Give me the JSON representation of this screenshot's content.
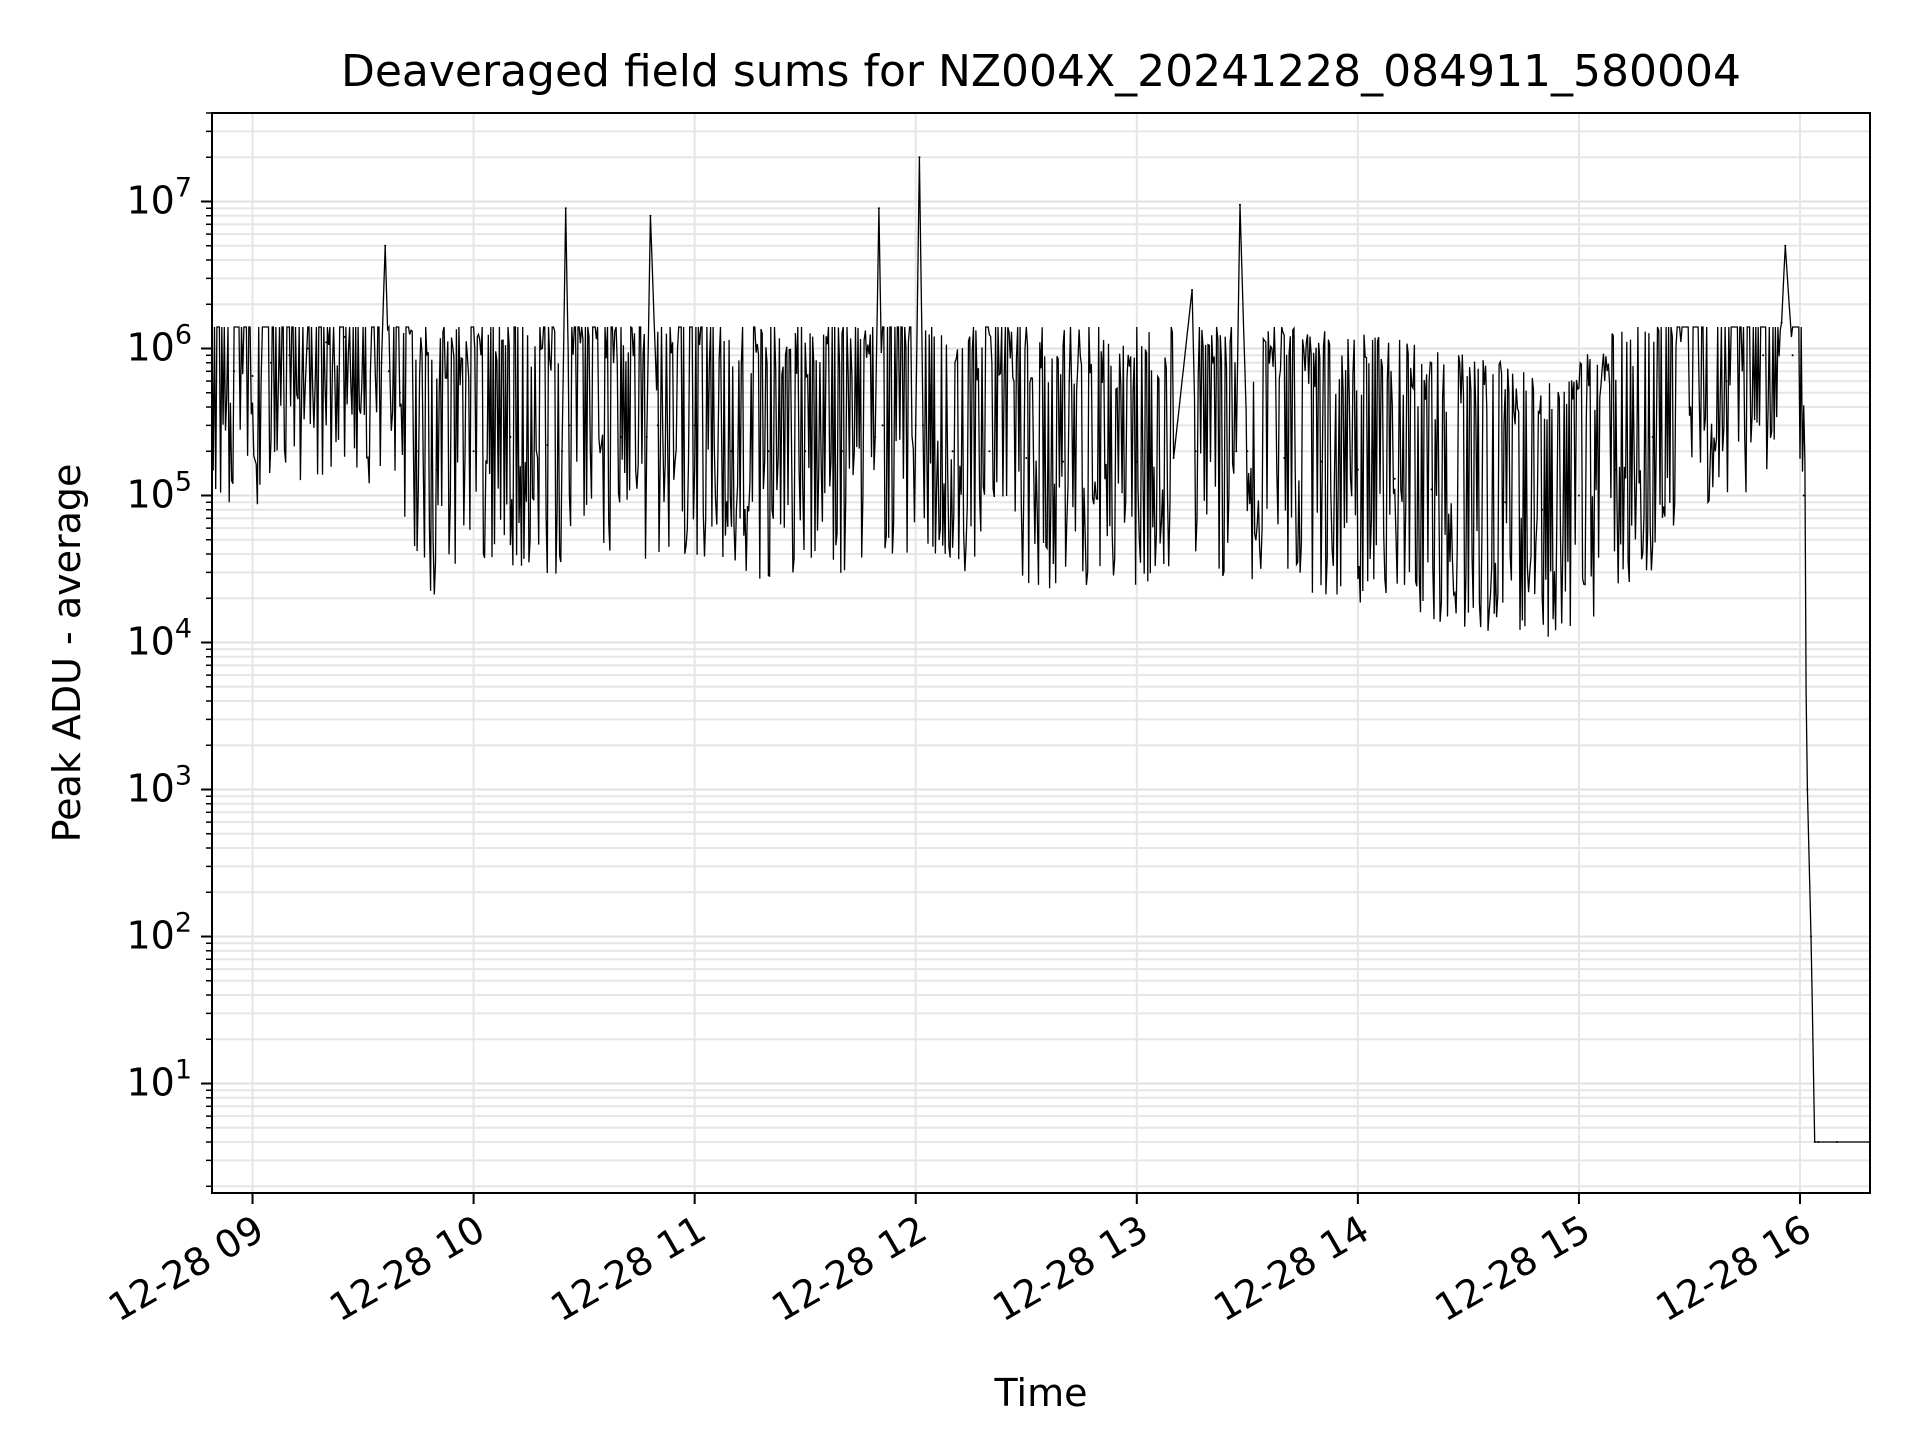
{
  "chart_data": {
    "type": "line",
    "title": "Deaveraged field sums for NZ004X_20241228_084911_580004",
    "xlabel": "Time",
    "ylabel": "Peak ADU - average",
    "yscale": "log",
    "ylim": [
      1.8,
      40000000
    ],
    "xlim": [
      "12-28 08:49",
      "12-28 16:19"
    ],
    "grid": "on (major and minor)",
    "x_ticks": [
      "12-28 09",
      "12-28 10",
      "12-28 11",
      "12-28 12",
      "12-28 13",
      "12-28 14",
      "12-28 15",
      "12-28 16"
    ],
    "y_ticks": [
      {
        "base": "10",
        "exp": "1",
        "value": 10
      },
      {
        "base": "10",
        "exp": "2",
        "value": 100
      },
      {
        "base": "10",
        "exp": "3",
        "value": 1000
      },
      {
        "base": "10",
        "exp": "4",
        "value": 10000
      },
      {
        "base": "10",
        "exp": "5",
        "value": 100000
      },
      {
        "base": "10",
        "exp": "6",
        "value": 1000000
      },
      {
        "base": "10",
        "exp": "7",
        "value": 10000000
      }
    ],
    "series": [
      {
        "color": "#000000",
        "x": [
          "12-28 08:49",
          "12-28 08:55",
          "12-28 09:00",
          "12-28 09:05",
          "12-28 09:10",
          "12-28 09:15",
          "12-28 09:20",
          "12-28 09:25",
          "12-28 09:30",
          "12-28 09:35",
          "12-28 09:36",
          "12-28 09:37",
          "12-28 09:40",
          "12-28 09:45",
          "12-28 09:50",
          "12-28 09:55",
          "12-28 10:00",
          "12-28 10:10",
          "12-28 10:20",
          "12-28 10:24",
          "12-28 10:25",
          "12-28 10:26",
          "12-28 10:30",
          "12-28 10:40",
          "12-28 10:47",
          "12-28 10:48",
          "12-28 10:50",
          "12-28 11:00",
          "12-28 11:10",
          "12-28 11:20",
          "12-28 11:30",
          "12-28 11:40",
          "12-28 11:49",
          "12-28 11:50",
          "12-28 11:51",
          "12-28 12:00",
          "12-28 12:01",
          "12-28 12:02",
          "12-28 12:10",
          "12-28 12:20",
          "12-28 12:30",
          "12-28 12:40",
          "12-28 12:50",
          "12-28 13:00",
          "12-28 13:10",
          "12-28 13:15",
          "12-28 13:16",
          "12-28 13:20",
          "12-28 13:27",
          "12-28 13:28",
          "12-28 13:30",
          "12-28 13:40",
          "12-28 13:50",
          "12-28 14:00",
          "12-28 14:10",
          "12-28 14:20",
          "12-28 14:30",
          "12-28 14:40",
          "12-28 14:50",
          "12-28 15:00",
          "12-28 15:10",
          "12-28 15:20",
          "12-28 15:30",
          "12-28 15:40",
          "12-28 15:50",
          "12-28 15:55",
          "12-28 15:56",
          "12-28 15:58",
          "12-28 16:00",
          "12-28 16:01",
          "12-28 16:02",
          "12-28 16:03",
          "12-28 16:04",
          "12-28 16:05",
          "12-28 16:10",
          "12-28 16:19"
        ],
        "y": [
          600000,
          700000,
          650000,
          800000,
          900000,
          1000000,
          1100000,
          1200000,
          1000000,
          800000,
          5000000,
          700000,
          500000,
          200000,
          150000,
          180000,
          200000,
          250000,
          220000,
          200000,
          9000000,
          300000,
          300000,
          250000,
          250000,
          8000000,
          300000,
          300000,
          200000,
          200000,
          200000,
          200000,
          250000,
          9000000,
          300000,
          300000,
          20000000,
          300000,
          200000,
          200000,
          180000,
          170000,
          170000,
          170000,
          180000,
          2500000,
          200000,
          200000,
          200000,
          9500000,
          200000,
          180000,
          170000,
          150000,
          130000,
          110000,
          100000,
          90000,
          80000,
          100000,
          150000,
          250000,
          400000,
          600000,
          900000,
          1500000,
          5000000,
          900000,
          400000,
          100000,
          1000,
          100,
          4,
          4,
          4,
          4
        ]
      }
    ]
  }
}
